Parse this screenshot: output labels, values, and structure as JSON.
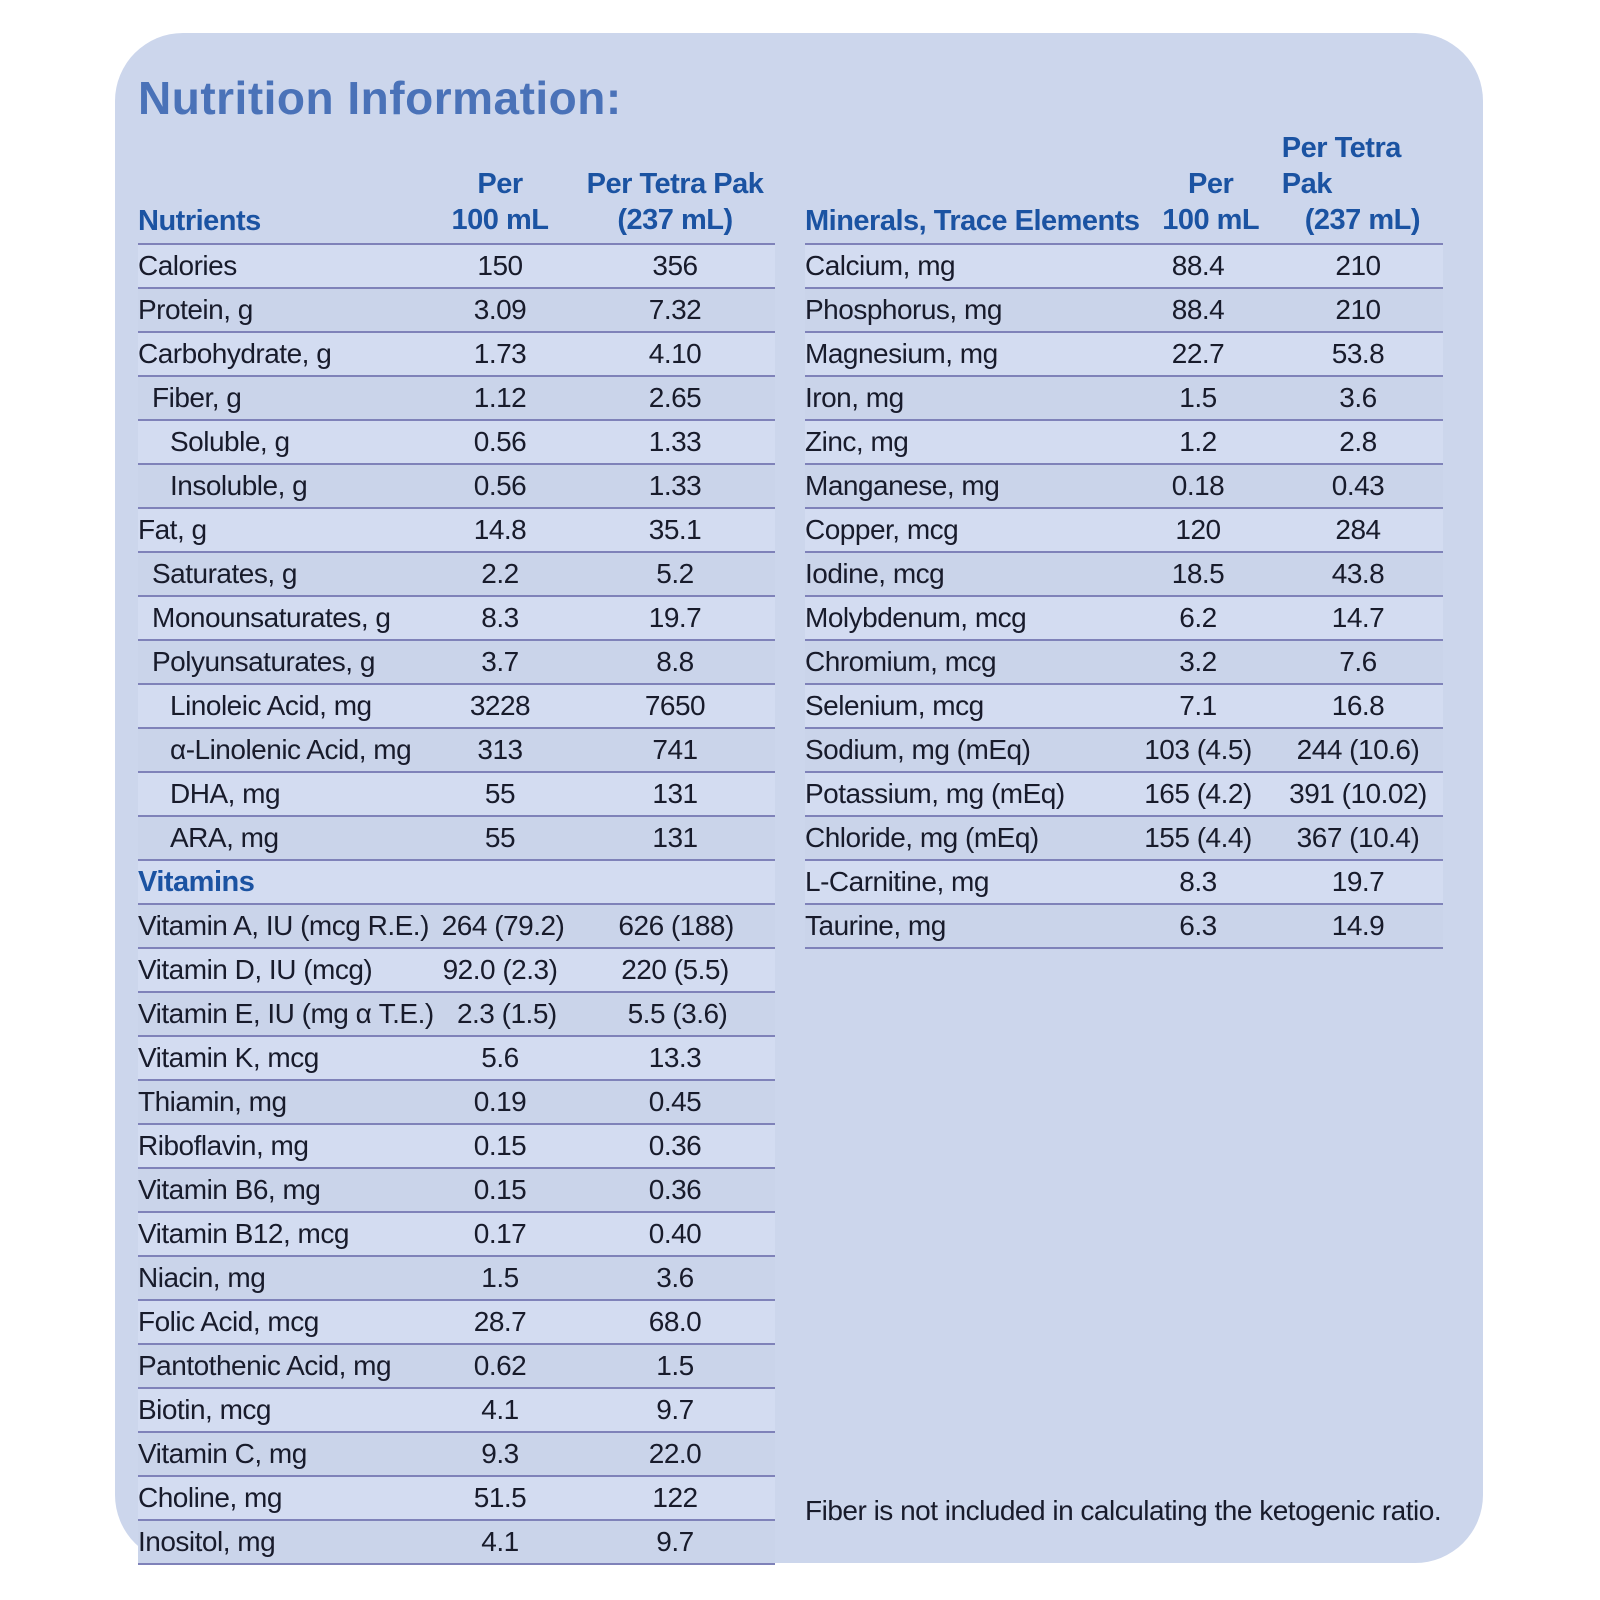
{
  "title": "Nutrition Information:",
  "colors": {
    "panel_background": "#ccd6ec",
    "title_blue": "#4a72b8",
    "header_blue": "#1b53a2",
    "separator": "#7f82b9",
    "body_text": "#181b2b"
  },
  "left_table": {
    "header": {
      "label": "Nutrients",
      "col1_line1": "Per",
      "col1_line2": "100 mL",
      "col2_line1": "Per Tetra Pak",
      "col2_line2": "(237 mL)"
    },
    "rows": [
      {
        "label": "Calories",
        "per_100ml": "150",
        "per_pak": "356",
        "indent": 0
      },
      {
        "label": "Protein, g",
        "per_100ml": "3.09",
        "per_pak": "7.32",
        "indent": 0
      },
      {
        "label": "Carbohydrate, g",
        "per_100ml": "1.73",
        "per_pak": "4.10",
        "indent": 0
      },
      {
        "label": "Fiber, g",
        "per_100ml": "1.12",
        "per_pak": "2.65",
        "indent": 1
      },
      {
        "label": "Soluble, g",
        "per_100ml": "0.56",
        "per_pak": "1.33",
        "indent": 2
      },
      {
        "label": "Insoluble, g",
        "per_100ml": "0.56",
        "per_pak": "1.33",
        "indent": 2
      },
      {
        "label": "Fat, g",
        "per_100ml": "14.8",
        "per_pak": "35.1",
        "indent": 0
      },
      {
        "label": "Saturates, g",
        "per_100ml": "2.2",
        "per_pak": "5.2",
        "indent": 1
      },
      {
        "label": "Monounsaturates, g",
        "per_100ml": "8.3",
        "per_pak": "19.7",
        "indent": 1
      },
      {
        "label": "Polyunsaturates, g",
        "per_100ml": "3.7",
        "per_pak": "8.8",
        "indent": 1
      },
      {
        "label": "Linoleic Acid, mg",
        "per_100ml": "3228",
        "per_pak": "7650",
        "indent": 2
      },
      {
        "label": "α-Linolenic Acid, mg",
        "per_100ml": "313",
        "per_pak": "741",
        "indent": 2
      },
      {
        "label": "DHA, mg",
        "per_100ml": "55",
        "per_pak": "131",
        "indent": 2
      },
      {
        "label": "ARA, mg",
        "per_100ml": "55",
        "per_pak": "131",
        "indent": 2
      },
      {
        "section": "Vitamins"
      },
      {
        "label": "Vitamin A, IU (mcg R.E.)",
        "per_100ml": "264 (79.2)",
        "per_pak": "626 (188)",
        "indent": 0
      },
      {
        "label": "Vitamin D, IU (mcg)",
        "per_100ml": "92.0 (2.3)",
        "per_pak": "220 (5.5)",
        "indent": 0
      },
      {
        "label": "Vitamin E, IU (mg α T.E.)",
        "per_100ml": "2.3 (1.5)",
        "per_pak": "5.5 (3.6)",
        "indent": 0
      },
      {
        "label": "Vitamin K, mcg",
        "per_100ml": "5.6",
        "per_pak": "13.3",
        "indent": 0
      },
      {
        "label": "Thiamin, mg",
        "per_100ml": "0.19",
        "per_pak": "0.45",
        "indent": 0
      },
      {
        "label": "Riboflavin, mg",
        "per_100ml": "0.15",
        "per_pak": "0.36",
        "indent": 0
      },
      {
        "label": "Vitamin B6, mg",
        "per_100ml": "0.15",
        "per_pak": "0.36",
        "indent": 0
      },
      {
        "label": "Vitamin B12, mcg",
        "per_100ml": "0.17",
        "per_pak": "0.40",
        "indent": 0
      },
      {
        "label": "Niacin, mg",
        "per_100ml": "1.5",
        "per_pak": "3.6",
        "indent": 0
      },
      {
        "label": "Folic Acid, mcg",
        "per_100ml": "28.7",
        "per_pak": "68.0",
        "indent": 0
      },
      {
        "label": "Pantothenic Acid, mg",
        "per_100ml": "0.62",
        "per_pak": "1.5",
        "indent": 0
      },
      {
        "label": "Biotin, mcg",
        "per_100ml": "4.1",
        "per_pak": "9.7",
        "indent": 0
      },
      {
        "label": "Vitamin C, mg",
        "per_100ml": "9.3",
        "per_pak": "22.0",
        "indent": 0
      },
      {
        "label": "Choline, mg",
        "per_100ml": "51.5",
        "per_pak": "122",
        "indent": 0
      },
      {
        "label": "Inositol, mg",
        "per_100ml": "4.1",
        "per_pak": "9.7",
        "indent": 0
      }
    ]
  },
  "right_table": {
    "header": {
      "label": "Minerals, Trace Elements",
      "col1_line1": "Per",
      "col1_line2": "100 mL",
      "col2_line1": "Per Tetra Pak",
      "col2_line2": "(237 mL)"
    },
    "rows": [
      {
        "label": "Calcium, mg",
        "per_100ml": "88.4",
        "per_pak": "210",
        "indent": 0
      },
      {
        "label": "Phosphorus, mg",
        "per_100ml": "88.4",
        "per_pak": "210",
        "indent": 0
      },
      {
        "label": "Magnesium, mg",
        "per_100ml": "22.7",
        "per_pak": "53.8",
        "indent": 0
      },
      {
        "label": "Iron, mg",
        "per_100ml": "1.5",
        "per_pak": "3.6",
        "indent": 0
      },
      {
        "label": "Zinc, mg",
        "per_100ml": "1.2",
        "per_pak": "2.8",
        "indent": 0
      },
      {
        "label": "Manganese, mg",
        "per_100ml": "0.18",
        "per_pak": "0.43",
        "indent": 0
      },
      {
        "label": "Copper, mcg",
        "per_100ml": "120",
        "per_pak": "284",
        "indent": 0
      },
      {
        "label": "Iodine, mcg",
        "per_100ml": "18.5",
        "per_pak": "43.8",
        "indent": 0
      },
      {
        "label": "Molybdenum, mcg",
        "per_100ml": "6.2",
        "per_pak": "14.7",
        "indent": 0
      },
      {
        "label": "Chromium, mcg",
        "per_100ml": "3.2",
        "per_pak": "7.6",
        "indent": 0
      },
      {
        "label": "Selenium, mcg",
        "per_100ml": "7.1",
        "per_pak": "16.8",
        "indent": 0
      },
      {
        "label": "Sodium, mg (mEq)",
        "per_100ml": "103 (4.5)",
        "per_pak": "244 (10.6)",
        "indent": 0
      },
      {
        "label": "Potassium, mg (mEq)",
        "per_100ml": "165 (4.2)",
        "per_pak": "391 (10.02)",
        "indent": 0
      },
      {
        "label": "Chloride, mg (mEq)",
        "per_100ml": "155 (4.4)",
        "per_pak": "367 (10.4)",
        "indent": 0
      },
      {
        "label": "L-Carnitine, mg",
        "per_100ml": "8.3",
        "per_pak": "19.7",
        "indent": 0
      },
      {
        "label": "Taurine, mg",
        "per_100ml": "6.3",
        "per_pak": "14.9",
        "indent": 0
      }
    ]
  },
  "footnote": "Fiber is not included in calculating the ketogenic ratio."
}
